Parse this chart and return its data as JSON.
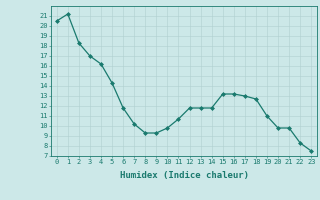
{
  "x": [
    0,
    1,
    2,
    3,
    4,
    5,
    6,
    7,
    8,
    9,
    10,
    11,
    12,
    13,
    14,
    15,
    16,
    17,
    18,
    19,
    20,
    21,
    22,
    23
  ],
  "y": [
    20.5,
    21.2,
    18.3,
    17.0,
    16.2,
    14.3,
    11.8,
    10.2,
    9.3,
    9.3,
    9.8,
    10.7,
    11.8,
    11.8,
    11.8,
    13.2,
    13.2,
    13.0,
    12.7,
    11.0,
    9.8,
    9.8,
    8.3,
    7.5
  ],
  "line_color": "#1a7a6e",
  "marker": "D",
  "markersize": 2.0,
  "linewidth": 0.9,
  "bg_color": "#cce8e8",
  "grid_color": "#b0d0d0",
  "xlabel": "Humidex (Indice chaleur)",
  "ylim": [
    7,
    22
  ],
  "xlim": [
    -0.5,
    23.5
  ],
  "yticks": [
    7,
    8,
    9,
    10,
    11,
    12,
    13,
    14,
    15,
    16,
    17,
    18,
    19,
    20,
    21
  ],
  "xticks": [
    0,
    1,
    2,
    3,
    4,
    5,
    6,
    7,
    8,
    9,
    10,
    11,
    12,
    13,
    14,
    15,
    16,
    17,
    18,
    19,
    20,
    21,
    22,
    23
  ],
  "tick_fontsize": 5.0,
  "xlabel_fontsize": 6.5,
  "axis_color": "#1a7a6e"
}
